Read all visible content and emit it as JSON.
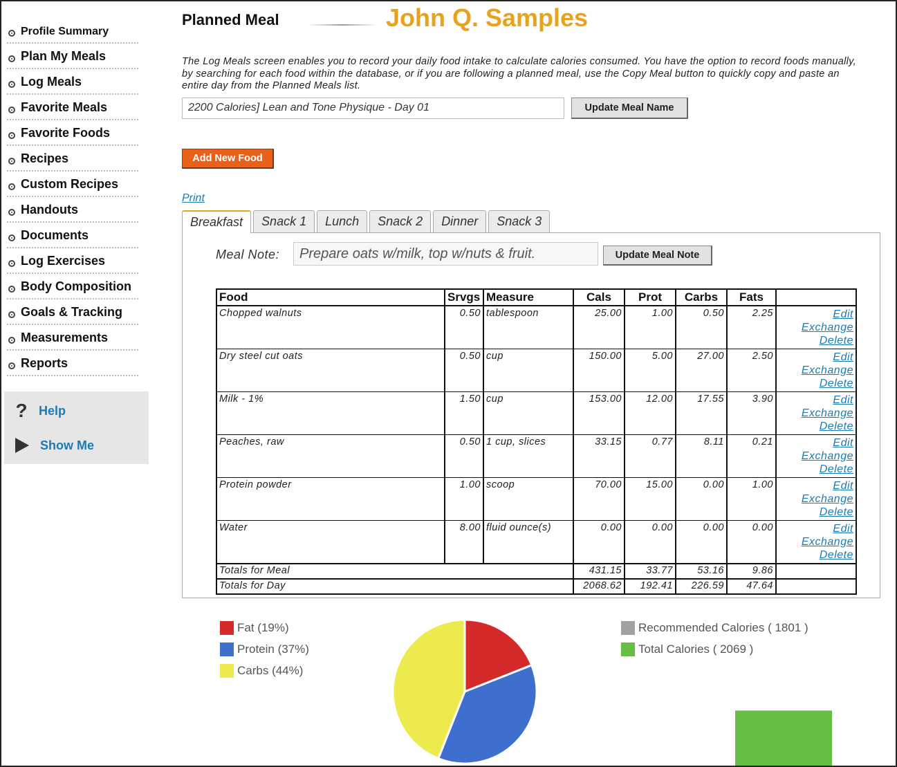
{
  "sidebar": {
    "items": [
      {
        "label": "Profile Summary"
      },
      {
        "label": "Plan My Meals"
      },
      {
        "label": "Log Meals"
      },
      {
        "label": "Favorite Meals"
      },
      {
        "label": "Favorite Foods"
      },
      {
        "label": "Recipes"
      },
      {
        "label": "Custom Recipes"
      },
      {
        "label": "Handouts"
      },
      {
        "label": "Documents"
      },
      {
        "label": "Log Exercises"
      },
      {
        "label": "Body Composition"
      },
      {
        "label": "Goals & Tracking"
      },
      {
        "label": "Measurements"
      },
      {
        "label": "Reports"
      }
    ],
    "help_label": "Help",
    "help_icon": "?",
    "showme_label": "Show Me"
  },
  "header": {
    "title": "Planned Meal",
    "user_name": "John Q. Samples"
  },
  "intro": "The Log Meals screen enables you to record your daily food intake to calculate calories consumed. You have the option to record foods manually, by searching for each food within the database, or if you are following a planned meal, use the Copy Meal button to quickly copy and paste an entire day from the Planned Meals list.",
  "meal_name": {
    "value": "2200 Calories] Lean and Tone Physique - Day 01",
    "button": "Update Meal Name"
  },
  "add_food_button": "Add New Food",
  "print_link": "Print",
  "tabs": [
    {
      "label": "Breakfast"
    },
    {
      "label": "Snack 1"
    },
    {
      "label": "Lunch"
    },
    {
      "label": "Snack 2"
    },
    {
      "label": "Dinner"
    },
    {
      "label": "Snack 3"
    }
  ],
  "meal_note": {
    "label": "Meal Note:",
    "value": "Prepare oats w/milk, top w/nuts & fruit.",
    "button": "Update Meal Note"
  },
  "table": {
    "headers": {
      "food": "Food",
      "srvgs": "Srvgs",
      "measure": "Measure",
      "cals": "Cals",
      "prot": "Prot",
      "carbs": "Carbs",
      "fats": "Fats"
    },
    "actions": {
      "edit": "Edit",
      "exchange": "Exchange",
      "delete": "Delete"
    },
    "rows": [
      {
        "food": "Chopped walnuts",
        "srvgs": "0.50",
        "measure": "tablespoon",
        "cals": "25.00",
        "prot": "1.00",
        "carbs": "0.50",
        "fats": "2.25"
      },
      {
        "food": "Dry steel cut oats",
        "srvgs": "0.50",
        "measure": "cup",
        "cals": "150.00",
        "prot": "5.00",
        "carbs": "27.00",
        "fats": "2.50"
      },
      {
        "food": "Milk - 1%",
        "srvgs": "1.50",
        "measure": "cup",
        "cals": "153.00",
        "prot": "12.00",
        "carbs": "17.55",
        "fats": "3.90"
      },
      {
        "food": "Peaches, raw",
        "srvgs": "0.50",
        "measure": "1 cup, slices",
        "cals": "33.15",
        "prot": "0.77",
        "carbs": "8.11",
        "fats": "0.21"
      },
      {
        "food": "Protein powder",
        "srvgs": "1.00",
        "measure": "scoop",
        "cals": "70.00",
        "prot": "15.00",
        "carbs": "0.00",
        "fats": "1.00"
      },
      {
        "food": "Water",
        "srvgs": "8.00",
        "measure": "fluid ounce(s)",
        "cals": "0.00",
        "prot": "0.00",
        "carbs": "0.00",
        "fats": "0.00"
      }
    ],
    "totals_meal": {
      "label": "Totals for Meal",
      "cals": "431.15",
      "prot": "33.77",
      "carbs": "53.16",
      "fats": "9.86"
    },
    "totals_day": {
      "label": "Totals for Day",
      "cals": "2068.62",
      "prot": "192.41",
      "carbs": "226.59",
      "fats": "47.64"
    }
  },
  "macro_legend": [
    {
      "label": "Fat (19%)",
      "color": "#d42a2a"
    },
    {
      "label": "Protein (37%)",
      "color": "#3f6fce"
    },
    {
      "label": "Carbs (44%)",
      "color": "#ecea4c"
    }
  ],
  "calorie_legend": [
    {
      "label": "Recommended Calories ( 1801 )",
      "color": "#a0a0a0"
    },
    {
      "label": "Total Calories ( 2069 )",
      "color": "#67be44"
    }
  ],
  "chart_data": [
    {
      "type": "pie",
      "categories": [
        "Fat",
        "Protein",
        "Carbs"
      ],
      "values": [
        19,
        37,
        44
      ],
      "colors": [
        "#d42a2a",
        "#3f6fce",
        "#ecea4c"
      ]
    },
    {
      "type": "bar",
      "categories": [
        "Recommended Calories",
        "Total Calories"
      ],
      "values": [
        1801,
        2069
      ],
      "colors": [
        "#a0a0a0",
        "#67be44"
      ]
    }
  ]
}
